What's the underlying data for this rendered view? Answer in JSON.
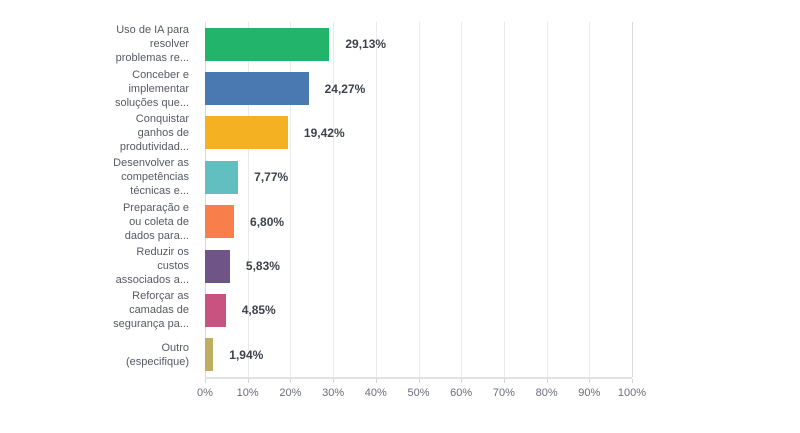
{
  "chart_data": {
    "type": "bar",
    "orientation": "horizontal",
    "title": "",
    "xlabel": "",
    "ylabel": "",
    "xlim": [
      0,
      100
    ],
    "grid": "vertical",
    "x_ticks": [
      "0%",
      "10%",
      "20%",
      "30%",
      "40%",
      "50%",
      "60%",
      "70%",
      "80%",
      "90%",
      "100%"
    ],
    "categories": [
      "Uso de IA para\nresolver\nproblemas re...",
      "Conceber e\nimplementar\nsoluções que...",
      "Conquistar\nganhos de\nprodutividad...",
      "Desenvolver as\ncompetências\ntécnicas e...",
      "Preparação e\nou coleta de\ndados para...",
      "Reduzir os\ncustos\nassociados a...",
      "Reforçar as\ncamadas de\nsegurança pa...",
      "Outro\n(especifique)"
    ],
    "values": [
      29.13,
      24.27,
      19.42,
      7.77,
      6.8,
      5.83,
      4.85,
      1.94
    ],
    "value_labels": [
      "29,13%",
      "24,27%",
      "19,42%",
      "7,77%",
      "6,80%",
      "5,83%",
      "4,85%",
      "1,94%"
    ],
    "bar_colors": [
      "#21b46a",
      "#4a79b2",
      "#f4b223",
      "#62bfc0",
      "#f87e4c",
      "#6f5587",
      "#c95380",
      "#bfad62"
    ]
  },
  "style_colors": {
    "category_label": "#565a63",
    "value_label": "#3e424c",
    "axis_label": "#696d76",
    "gridline": "#eaeaea",
    "gridline_edge": "#d9d9d9",
    "axis_line": "#e2e2e2",
    "background": "#ffffff"
  }
}
